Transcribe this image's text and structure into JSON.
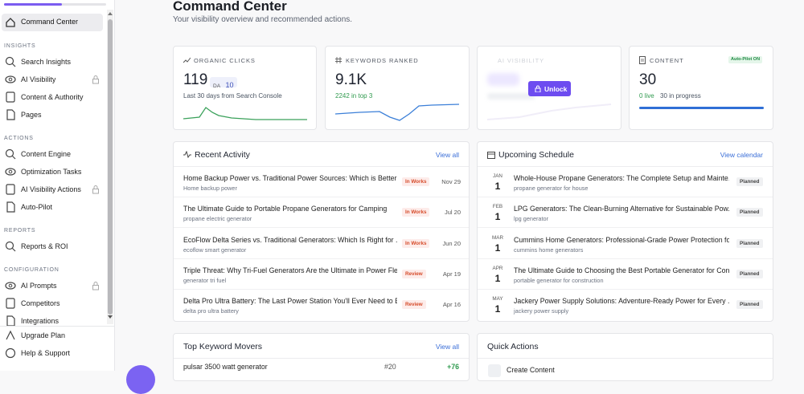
{
  "sidebar": {
    "top_item": "Command Center",
    "sections": [
      {
        "title": "INSIGHTS",
        "items": [
          {
            "label": "Search Insights"
          },
          {
            "label": "AI Visibility",
            "locked": true
          },
          {
            "label": "Content & Authority"
          },
          {
            "label": "Pages"
          }
        ]
      },
      {
        "title": "ACTIONS",
        "items": [
          {
            "label": "Content Engine"
          },
          {
            "label": "Optimization Tasks"
          },
          {
            "label": "AI Visibility Actions",
            "locked": true
          },
          {
            "label": "Auto-Pilot"
          }
        ]
      },
      {
        "title": "REPORTS",
        "items": [
          {
            "label": "Reports & ROI"
          }
        ]
      },
      {
        "title": "CONFIGURATION",
        "items": [
          {
            "label": "AI Prompts",
            "locked": true
          },
          {
            "label": "Competitors"
          },
          {
            "label": "Integrations"
          }
        ]
      }
    ],
    "footer": [
      "Upgrade Plan",
      "Help & Support"
    ]
  },
  "header": {
    "title": "Command Center",
    "subtitle": "Your visibility overview and recommended actions."
  },
  "stats": {
    "organic_clicks": {
      "label": "ORGANIC CLICKS",
      "value": "119",
      "badge_label": "DA",
      "badge_value": "10",
      "note": "Last 30 days from Search Console"
    },
    "keywords_ranked": {
      "label": "KEYWORDS RANKED",
      "value": "9.1K",
      "note": "2242 in top 3"
    },
    "ai_visibility": {
      "label": "AI VISIBILITY",
      "button": "Unlock"
    },
    "content": {
      "label": "CONTENT",
      "badge": "Auto-Pilot ON",
      "value": "30",
      "live": "0 live",
      "progress": "30 in progress"
    }
  },
  "recent_activity": {
    "title": "Recent Activity",
    "link": "View all",
    "rows": [
      {
        "title": "Home Backup Power vs. Traditional Power Sources: Which is Better?",
        "keyword": "Home backup power",
        "status": "In Works",
        "date": "Nov 29"
      },
      {
        "title": "The Ultimate Guide to Portable Propane Generators for Camping",
        "keyword": "propane electric generator",
        "status": "In Works",
        "date": "Jul 20"
      },
      {
        "title": "EcoFlow Delta Series vs. Traditional Generators: Which Is Right for ...",
        "keyword": "ecoflow smart generator",
        "status": "In Works",
        "date": "Jun 20"
      },
      {
        "title": "Triple Threat: Why Tri-Fuel Generators Are the Ultimate in Power Fle...",
        "keyword": "generator tri fuel",
        "status": "Review",
        "date": "Apr 19"
      },
      {
        "title": "Delta Pro Ultra Battery: The Last Power Station You'll Ever Need to B...",
        "keyword": "delta pro ultra battery",
        "status": "Review",
        "date": "Apr 16"
      }
    ]
  },
  "upcoming_schedule": {
    "title": "Upcoming Schedule",
    "link": "View calendar",
    "rows": [
      {
        "month": "JAN",
        "day": "1",
        "title": "Whole-House Propane Generators: The Complete Setup and Mainte...",
        "keyword": "propane generator for house",
        "status": "Planned"
      },
      {
        "month": "FEB",
        "day": "1",
        "title": "LPG Generators: The Clean-Burning Alternative for Sustainable Pow...",
        "keyword": "lpg generator",
        "status": "Planned"
      },
      {
        "month": "MAR",
        "day": "1",
        "title": "Cummins Home Generators: Professional-Grade Power Protection fo...",
        "keyword": "cummins home generators",
        "status": "Planned"
      },
      {
        "month": "APR",
        "day": "1",
        "title": "The Ultimate Guide to Choosing the Best Portable Generator for Con...",
        "keyword": "portable generator for construction",
        "status": "Planned"
      },
      {
        "month": "MAY",
        "day": "1",
        "title": "Jackery Power Supply Solutions: Adventure-Ready Power for Every ...",
        "keyword": "jackery power supply",
        "status": "Planned"
      }
    ]
  },
  "keyword_movers": {
    "title": "Top Keyword Movers",
    "link": "View all",
    "rows": [
      {
        "keyword": "pulsar 3500 watt generator",
        "rank": "#20",
        "change": "+76"
      }
    ]
  },
  "quick_actions": {
    "title": "Quick Actions",
    "items": [
      "Create Content"
    ]
  }
}
